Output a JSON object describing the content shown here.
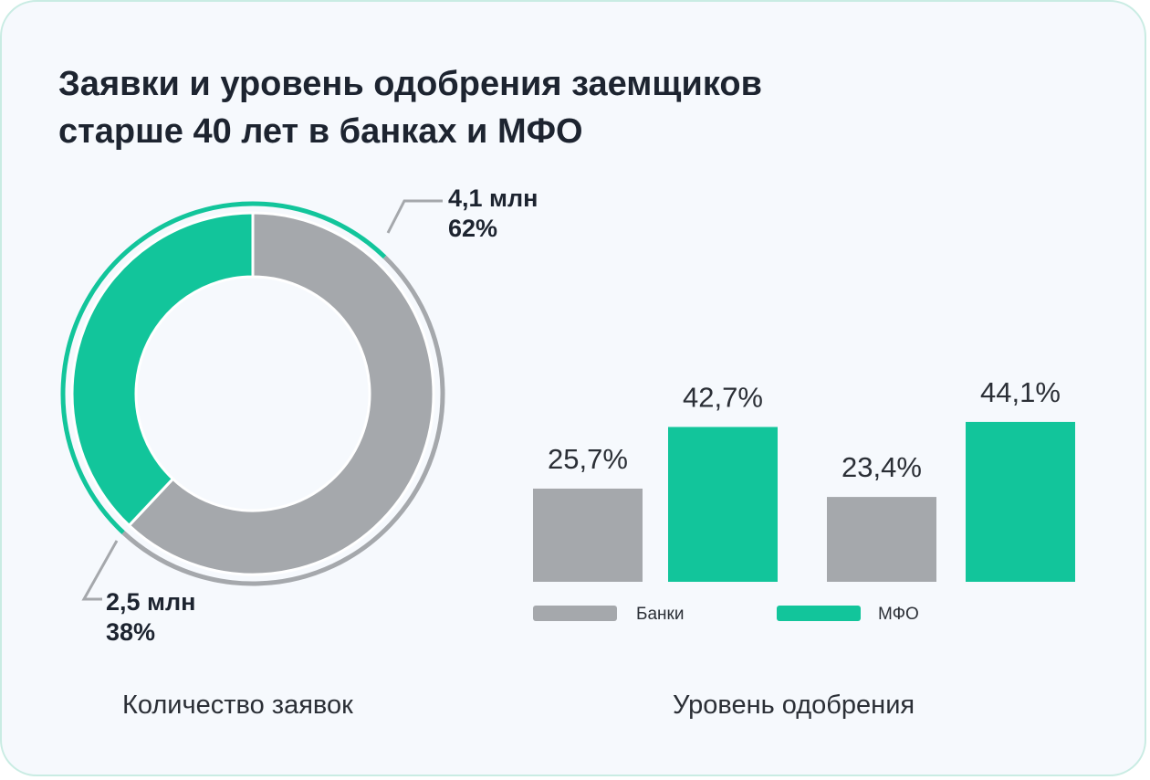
{
  "title": {
    "line1": "Заявки и уровень одобрения заемщиков",
    "line2": "старше 40 лет в банках и МФО"
  },
  "colors": {
    "bank": "#a5a8ac",
    "mfo": "#12c59b",
    "text": "#1d2430"
  },
  "chart_data": [
    {
      "type": "pie",
      "subtitle": "Количество заявок",
      "slices": [
        {
          "value_label": "4,1 млн",
          "percent": 62,
          "percent_label": "62%",
          "color": "#a5a8ac"
        },
        {
          "value_label": "2,5 млн",
          "percent": 38,
          "percent_label": "38%",
          "color": "#12c59b"
        }
      ]
    },
    {
      "type": "bar",
      "subtitle": "Уровень одобрения",
      "groups": 2,
      "series": [
        {
          "name": "Банки",
          "values": [
            25.7,
            23.4
          ],
          "labels": [
            "25,7%",
            "23,4%"
          ],
          "color": "#a5a8ac"
        },
        {
          "name": "МФО",
          "values": [
            42.7,
            44.1
          ],
          "labels": [
            "42,7%",
            "44,1%"
          ],
          "color": "#12c59b"
        }
      ]
    }
  ]
}
